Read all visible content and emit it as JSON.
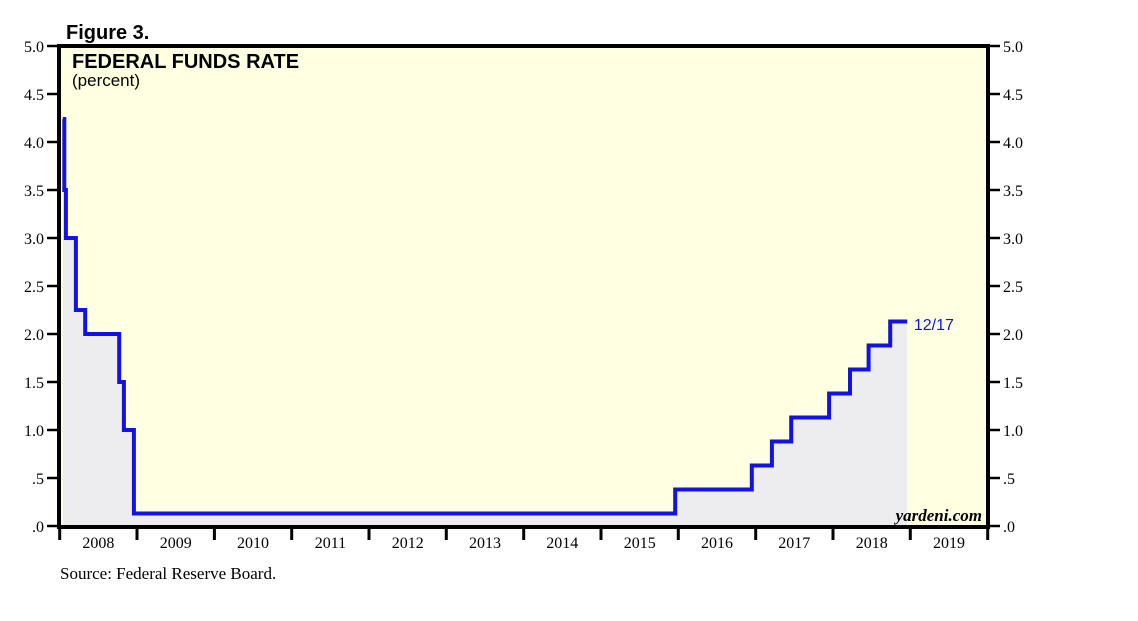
{
  "figure_label": "Figure 3.",
  "chart": {
    "title": "FEDERAL FUNDS RATE",
    "subtitle": "(percent)",
    "end_label": "12/17",
    "watermark": "yardeni.com"
  },
  "source_note": "Source: Federal Reserve Board.",
  "chart_data": {
    "type": "line",
    "line_style": "step",
    "title": "FEDERAL FUNDS RATE",
    "ylabel": "percent",
    "xlim": [
      2008,
      2020
    ],
    "ylim": [
      0,
      5
    ],
    "grid": false,
    "legend": "none",
    "y_ticks": [
      {
        "value": 5.0,
        "label": "5.0"
      },
      {
        "value": 4.5,
        "label": "4.5"
      },
      {
        "value": 4.0,
        "label": "4.0"
      },
      {
        "value": 3.5,
        "label": "3.5"
      },
      {
        "value": 3.0,
        "label": "3.0"
      },
      {
        "value": 2.5,
        "label": "2.5"
      },
      {
        "value": 2.0,
        "label": "2.0"
      },
      {
        "value": 1.5,
        "label": "1.5"
      },
      {
        "value": 1.0,
        "label": "1.0"
      },
      {
        "value": 0.5,
        "label": ".5"
      },
      {
        "value": 0.0,
        "label": ".0"
      }
    ],
    "x_boundary_ticks": [
      2008,
      2009,
      2010,
      2011,
      2012,
      2013,
      2014,
      2015,
      2016,
      2017,
      2018,
      2019,
      2020
    ],
    "x_year_labels": [
      "2008",
      "2009",
      "2010",
      "2011",
      "2012",
      "2013",
      "2014",
      "2015",
      "2016",
      "2017",
      "2018",
      "2019"
    ],
    "series": [
      {
        "name": "Federal Funds Rate (percent)",
        "step_points": [
          [
            2008.04,
            4.24
          ],
          [
            2008.06,
            3.5
          ],
          [
            2008.08,
            3.0
          ],
          [
            2008.21,
            2.25
          ],
          [
            2008.33,
            2.0
          ],
          [
            2008.77,
            1.5
          ],
          [
            2008.83,
            1.0
          ],
          [
            2008.96,
            0.13
          ],
          [
            2015.96,
            0.38
          ],
          [
            2016.95,
            0.63
          ],
          [
            2017.21,
            0.88
          ],
          [
            2017.46,
            1.13
          ],
          [
            2017.95,
            1.38
          ],
          [
            2018.22,
            1.63
          ],
          [
            2018.46,
            1.88
          ],
          [
            2018.74,
            2.13
          ]
        ],
        "end_x": 2018.96,
        "last_value": 2.13
      }
    ],
    "annotation": {
      "text": "12/17",
      "x": 2019.02,
      "y": 2.13
    },
    "colors": {
      "line": "#1212e6",
      "area_fill": "#ededf0",
      "plot_background": "#ffffe2",
      "frame": "#000000",
      "annotation_text": "#1212e6",
      "page_background": "#ffffff"
    }
  }
}
